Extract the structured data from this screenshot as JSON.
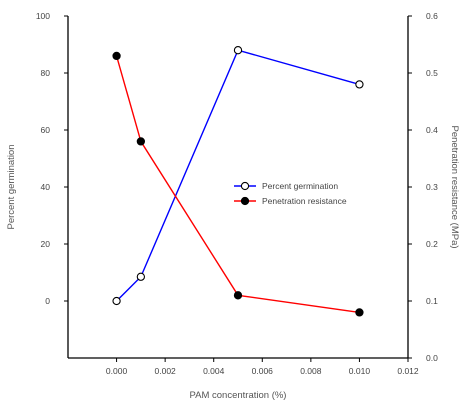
{
  "chart_data": {
    "type": "line",
    "xlabel": "PAM concentration (%)",
    "ylabel_left": "Percent germination",
    "ylabel_right": "Penetration resistance (MPa)",
    "xlim": [
      -0.002,
      0.012
    ],
    "ylim_left": [
      -20,
      100
    ],
    "ylim_right": [
      0.0,
      0.6
    ],
    "x_ticks": [
      0.0,
      0.002,
      0.004,
      0.006,
      0.008,
      0.01,
      0.012
    ],
    "x_tick_labels": [
      "0.000",
      "0.002",
      "0.004",
      "0.006",
      "0.008",
      "0.010",
      "0.012"
    ],
    "y_left_ticks": [
      0,
      20,
      40,
      60,
      80,
      100
    ],
    "y_left_tick_labels": [
      "0",
      "20",
      "40",
      "60",
      "80",
      "100"
    ],
    "y_right_ticks": [
      0.0,
      0.1,
      0.2,
      0.3,
      0.4,
      0.5,
      0.6
    ],
    "y_right_tick_labels": [
      "0.0",
      "0.1",
      "0.2",
      "0.3",
      "0.4",
      "0.5",
      "0.6"
    ],
    "legend_position": "center-right",
    "grid": false,
    "series": [
      {
        "name": "Percent germination",
        "axis": "left",
        "color": "#0000ff",
        "marker": "open-circle",
        "x": [
          0.0,
          0.001,
          0.005,
          0.01
        ],
        "y": [
          0,
          8.5,
          88,
          76
        ]
      },
      {
        "name": "Penetration resistance",
        "axis": "right",
        "color": "#ff0000",
        "marker": "filled-circle",
        "x": [
          0.0,
          0.001,
          0.005,
          0.01
        ],
        "y": [
          0.53,
          0.38,
          0.11,
          0.08
        ]
      }
    ]
  }
}
